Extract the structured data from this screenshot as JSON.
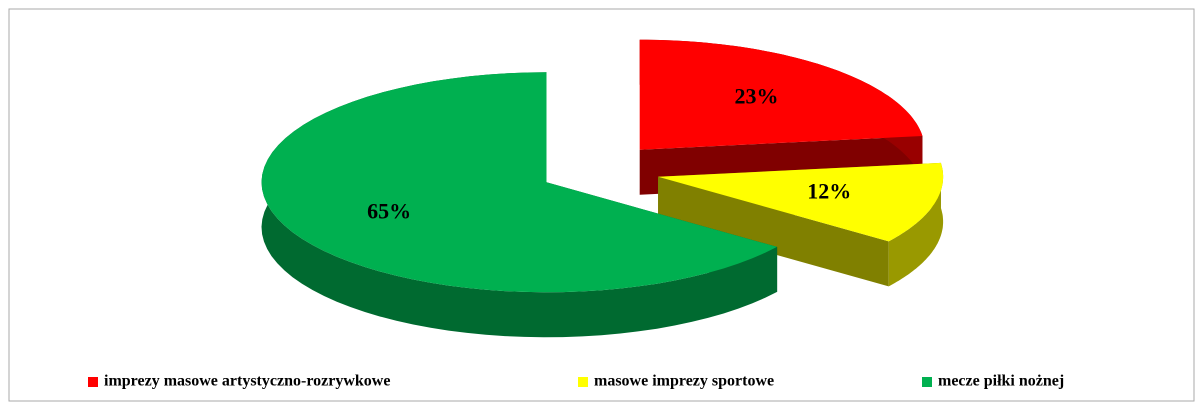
{
  "chart_data": {
    "type": "pie3d",
    "categories": [
      "imprezy masowe artystyczno-rozrywkowe",
      "masowe imprezy sportowe",
      "mecze piłki nożnej"
    ],
    "values": [
      23,
      12,
      65
    ],
    "value_labels": [
      "23%",
      "12%",
      "65%"
    ],
    "colors": [
      "#ff0000",
      "#ffff00",
      "#00b050"
    ],
    "legend": "bottom"
  }
}
